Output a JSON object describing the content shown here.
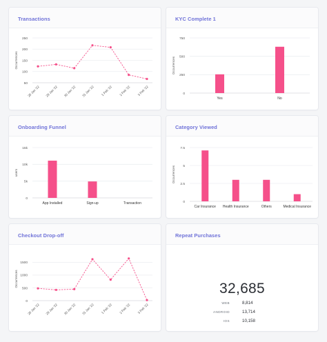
{
  "accent": "#f5508a",
  "cards": {
    "transactions": {
      "title": "Transactions"
    },
    "kyc": {
      "title": "KYC Complete 1"
    },
    "onboarding": {
      "title": "Onboarding Funnel"
    },
    "category": {
      "title": "Category Viewed"
    },
    "checkout": {
      "title": "Checkout Drop-off"
    },
    "repeat": {
      "title": "Repeat Purchases"
    }
  },
  "repeat": {
    "total": "32,685",
    "rows": [
      {
        "key": "WEB",
        "value": "8,814"
      },
      {
        "key": "ANDROID",
        "value": "13,714"
      },
      {
        "key": "IOS",
        "value": "10,158"
      }
    ]
  },
  "chart_data": [
    {
      "id": "transactions",
      "type": "line",
      "title": "Transactions",
      "ylabel": "Occurrences",
      "x": [
        "28 Jan '22",
        "29 Jan '22",
        "30 Jan '22",
        "31 Jan '22",
        "1 Feb '22",
        "2 Feb '22",
        "3 Feb '22"
      ],
      "series": [
        {
          "values": [
            123,
            132,
            115,
            217,
            208,
            85,
            67
          ]
        }
      ],
      "yticks": [
        50,
        100,
        150,
        200,
        250
      ],
      "ylim": [
        50,
        250
      ],
      "style": "dashed-line-points"
    },
    {
      "id": "kyc",
      "type": "bar",
      "title": "KYC Complete 1",
      "ylabel": "Occurrences",
      "categories": [
        "Yes",
        "No"
      ],
      "values": [
        255,
        630
      ],
      "yticks": [
        0,
        250,
        500,
        750
      ],
      "ylim": [
        0,
        750
      ]
    },
    {
      "id": "onboarding",
      "type": "bar",
      "title": "Onboarding Funnel",
      "ylabel": "users",
      "categories": [
        "App Installed",
        "Sign-up",
        "Transaction"
      ],
      "values": [
        11100,
        4900,
        0
      ],
      "yticks": [
        0,
        5000,
        10000,
        15000
      ],
      "ytick_labels": [
        "0",
        "5k",
        "10k",
        "15k"
      ],
      "ylim": [
        0,
        15000
      ]
    },
    {
      "id": "category",
      "type": "bar",
      "title": "Category Viewed",
      "ylabel": "Occurrences",
      "categories": [
        "Car Insurance",
        "Health Insurance",
        "Others",
        "Medical Insurance"
      ],
      "values": [
        7.1,
        3.0,
        3.0,
        1.0
      ],
      "yticks": [
        0,
        2.5,
        5,
        7.5
      ],
      "ytick_labels": [
        "0",
        "2.5",
        "5",
        "7.5"
      ],
      "ylim": [
        0,
        7.5
      ]
    },
    {
      "id": "checkout",
      "type": "line",
      "title": "Checkout Drop-off",
      "ylabel": "Occurrences",
      "x": [
        "28 Jan '22",
        "29 Jan '22",
        "30 Jan '22",
        "31 Jan '22",
        "1 Feb '22",
        "2 Feb '22",
        "3 Feb '22"
      ],
      "series": [
        {
          "values": [
            480,
            420,
            450,
            1620,
            820,
            1650,
            20
          ]
        }
      ],
      "yticks": [
        0,
        500,
        1000,
        1500
      ],
      "ylim": [
        0,
        1700
      ],
      "style": "dashed-line-points"
    }
  ]
}
